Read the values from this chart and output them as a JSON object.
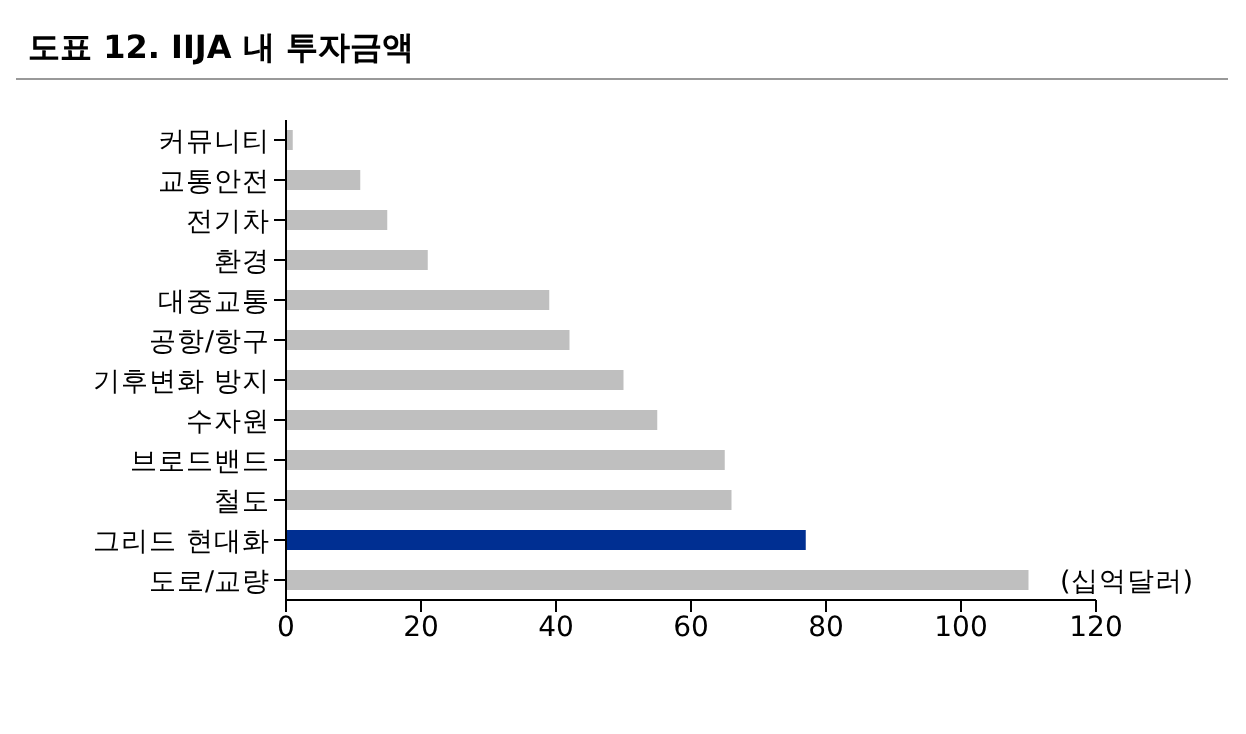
{
  "chart_data": {
    "type": "bar",
    "orientation": "horizontal",
    "title": "도표 12.  IIJA 내 투자금액",
    "categories": [
      "커뮤니티",
      "교통안전",
      "전기차",
      "환경",
      "대중교통",
      "공항/항구",
      "기후변화 방지",
      "수자원",
      "브로드밴드",
      "철도",
      "그리드 현대화",
      "도로/교량"
    ],
    "values": [
      1,
      11,
      15,
      21,
      39,
      42,
      50,
      55,
      65,
      66,
      77,
      110
    ],
    "colors": [
      "#bfbfbf",
      "#bfbfbf",
      "#bfbfbf",
      "#bfbfbf",
      "#bfbfbf",
      "#bfbfbf",
      "#bfbfbf",
      "#bfbfbf",
      "#bfbfbf",
      "#bfbfbf",
      "#002f92",
      "#bfbfbf"
    ],
    "xlim": [
      0,
      120
    ],
    "xticks": [
      0,
      20,
      40,
      60,
      80,
      100,
      120
    ],
    "annotations": [
      "(십억달러)"
    ],
    "grid": false,
    "legend": false
  }
}
